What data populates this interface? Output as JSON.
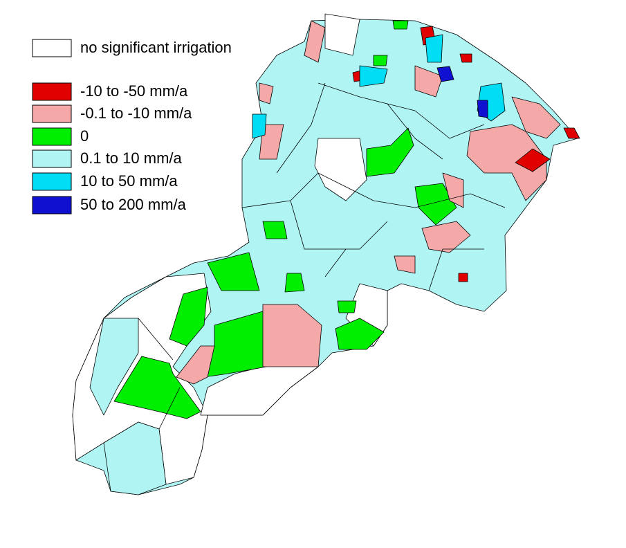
{
  "legend": {
    "items": [
      {
        "label": "no significant irrigation",
        "color": "#ffffff"
      },
      {
        "label": "-10 to -50 mm/a",
        "color": "#e00000"
      },
      {
        "label": "-0.1 to -10 mm/a",
        "color": "#f4a8a8"
      },
      {
        "label": "0",
        "color": "#00ee00"
      },
      {
        "label": "0.1 to 10 mm/a",
        "color": "#b0f4f4"
      },
      {
        "label": "10 to 50 mm/a",
        "color": "#00ddf4"
      },
      {
        "label": "50 to 200 mm/a",
        "color": "#1010d0"
      }
    ]
  }
}
